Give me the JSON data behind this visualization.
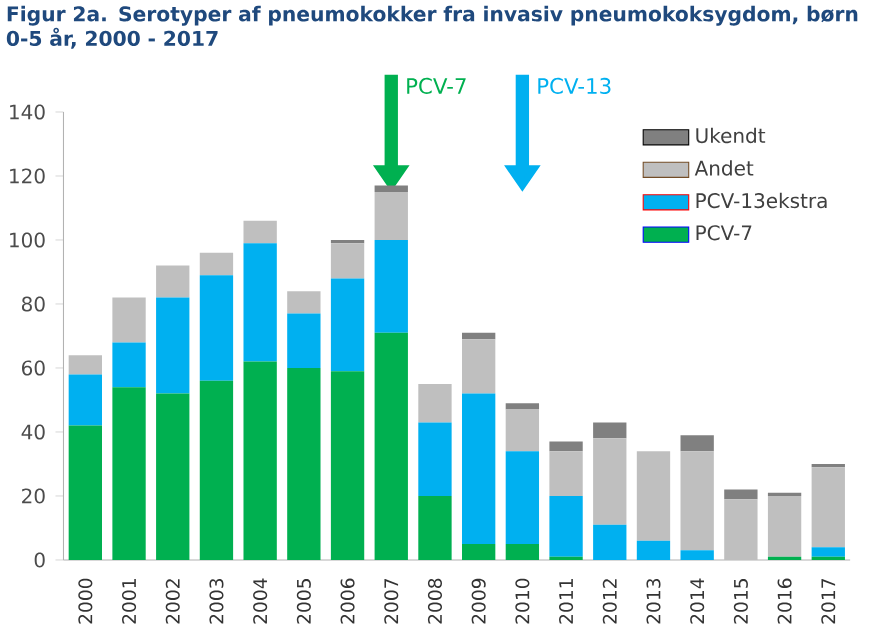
{
  "chart_data": {
    "type": "bar",
    "stacked": true,
    "title": "Figur 2a. Serotyper af pneumokokker fra invasiv pneumokoksygdom, børn 0-5 år, 2000 - 2017",
    "categories": [
      "2000",
      "2001",
      "2002",
      "2003",
      "2004",
      "2005",
      "2006",
      "2007",
      "2008",
      "2009",
      "2010",
      "2011",
      "2012",
      "2013",
      "2014",
      "2015",
      "2016",
      "2017"
    ],
    "series": [
      {
        "name": "PCV-7",
        "color": "#00b050",
        "values": [
          42,
          54,
          52,
          56,
          62,
          60,
          59,
          71,
          20,
          5,
          5,
          1,
          0,
          0,
          0,
          0,
          1,
          1
        ]
      },
      {
        "name": "PCV-13ekstra",
        "color": "#00b0f0",
        "values": [
          16,
          14,
          30,
          33,
          37,
          17,
          29,
          29,
          23,
          47,
          29,
          19,
          11,
          6,
          3,
          0,
          0,
          3
        ]
      },
      {
        "name": "Andet",
        "color": "#bfbfbf",
        "values": [
          6,
          14,
          10,
          7,
          7,
          7,
          11,
          15,
          12,
          17,
          13,
          14,
          27,
          28,
          31,
          19,
          19,
          25
        ]
      },
      {
        "name": "Ukendt",
        "color": "#808080",
        "values": [
          0,
          0,
          0,
          0,
          0,
          0,
          1,
          2,
          0,
          2,
          2,
          3,
          5,
          0,
          5,
          3,
          1,
          1
        ]
      }
    ],
    "ylim": [
      0,
      140
    ],
    "yticks": [
      0,
      20,
      40,
      60,
      80,
      100,
      120,
      140
    ],
    "legend": "top right",
    "grid": false,
    "annotations": [
      "PCV-7",
      "PCV-13"
    ]
  }
}
